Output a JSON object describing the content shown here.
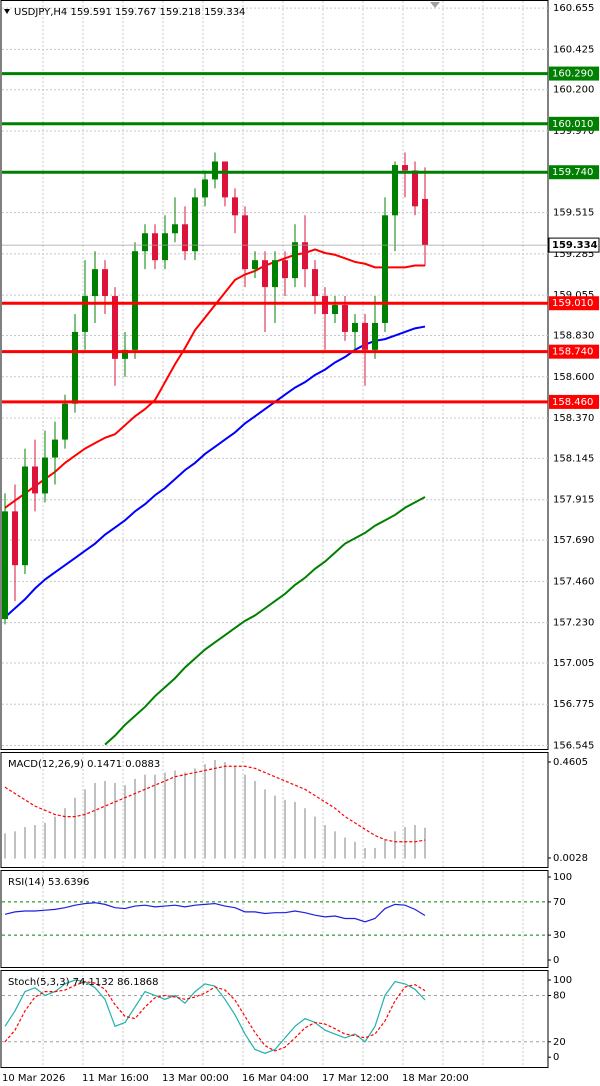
{
  "chart_data": [
    {
      "type": "candlestick",
      "title": "USDJPY,H4 159.591 159.767 159.218 159.334",
      "categories": [
        "10 Mar 2026",
        null,
        null,
        null,
        null,
        null,
        null,
        null,
        "11 Mar 16:00",
        null,
        null,
        null,
        null,
        null,
        null,
        null,
        "13 Mar 00:00",
        null,
        null,
        null,
        null,
        null,
        null,
        null,
        "16 Mar 04:00",
        null,
        null,
        null,
        null,
        null,
        null,
        null,
        "17 Mar 12:00",
        null,
        null,
        null,
        null,
        null,
        null,
        null,
        "18 Mar 20:00",
        null,
        null
      ],
      "open": [
        157.25,
        157.85,
        157.55,
        158.1,
        157.95,
        158.15,
        158.25,
        158.45,
        158.85,
        159.05,
        159.2,
        159.05,
        158.7,
        158.75,
        159.3,
        159.4,
        159.25,
        159.4,
        159.45,
        159.3,
        159.6,
        159.7,
        159.8,
        159.6,
        159.5,
        159.2,
        159.25,
        159.1,
        159.25,
        159.15,
        159.35,
        159.2,
        159.05,
        158.95,
        159.0,
        158.85,
        158.9,
        158.75,
        158.9,
        159.5,
        159.78,
        159.75,
        159.591
      ],
      "high": [
        157.95,
        158.0,
        158.2,
        158.25,
        158.3,
        158.35,
        158.5,
        158.95,
        159.25,
        159.3,
        159.25,
        159.1,
        158.85,
        159.35,
        159.45,
        159.45,
        159.5,
        159.6,
        159.55,
        159.65,
        159.75,
        159.85,
        159.8,
        159.65,
        159.55,
        159.3,
        159.3,
        159.3,
        159.3,
        159.45,
        159.5,
        159.25,
        159.1,
        159.05,
        159.05,
        158.95,
        158.95,
        159.05,
        159.6,
        159.8,
        159.85,
        159.8,
        159.767
      ],
      "low": [
        157.22,
        157.35,
        157.5,
        157.85,
        157.9,
        158.0,
        158.2,
        158.4,
        158.75,
        158.9,
        158.95,
        158.55,
        158.6,
        158.7,
        159.2,
        159.2,
        159.2,
        159.35,
        159.25,
        159.25,
        159.55,
        159.65,
        159.55,
        159.4,
        159.1,
        159.15,
        158.85,
        158.9,
        159.05,
        159.1,
        159.1,
        158.95,
        158.75,
        158.9,
        158.8,
        158.75,
        158.55,
        158.7,
        158.85,
        159.3,
        159.6,
        159.5,
        159.218
      ],
      "close": [
        157.85,
        157.55,
        158.1,
        157.95,
        158.15,
        158.25,
        158.45,
        158.85,
        159.05,
        159.2,
        159.05,
        158.7,
        158.75,
        159.3,
        159.4,
        159.25,
        159.4,
        159.45,
        159.3,
        159.6,
        159.7,
        159.8,
        159.6,
        159.5,
        159.2,
        159.25,
        159.1,
        159.25,
        159.15,
        159.35,
        159.2,
        159.05,
        158.95,
        159.0,
        158.85,
        158.9,
        158.75,
        158.9,
        159.5,
        159.78,
        159.75,
        159.55,
        159.334
      ],
      "up_color": "#008000",
      "down_color": "#dc143c",
      "series": [
        {
          "color": "#ff0000",
          "values": [
            157.87,
            157.91,
            157.95,
            157.99,
            158.03,
            158.07,
            158.12,
            158.16,
            158.2,
            158.23,
            158.26,
            158.28,
            158.33,
            158.38,
            158.42,
            158.47,
            158.57,
            158.67,
            158.76,
            158.86,
            158.93,
            159.0,
            159.07,
            159.14,
            159.17,
            159.19,
            159.22,
            159.24,
            159.26,
            159.28,
            159.29,
            159.31,
            159.29,
            159.28,
            159.26,
            159.24,
            159.23,
            159.21,
            159.21,
            159.21,
            159.21,
            159.22,
            159.22
          ]
        },
        {
          "color": "#0000ff",
          "values": [
            157.26,
            157.31,
            157.36,
            157.42,
            157.47,
            157.51,
            157.55,
            157.59,
            157.63,
            157.67,
            157.72,
            157.76,
            157.8,
            157.85,
            157.89,
            157.94,
            157.98,
            158.03,
            158.08,
            158.12,
            158.17,
            158.21,
            158.25,
            158.29,
            158.34,
            158.38,
            158.42,
            158.46,
            158.5,
            158.54,
            158.57,
            158.61,
            158.64,
            158.68,
            158.71,
            158.75,
            158.78,
            158.8,
            158.81,
            158.83,
            158.85,
            158.87,
            158.88
          ]
        },
        {
          "color": "#008000",
          "values": [
            null,
            null,
            null,
            null,
            null,
            null,
            null,
            null,
            null,
            null,
            156.55,
            156.6,
            156.66,
            156.71,
            156.76,
            156.82,
            156.87,
            156.92,
            156.98,
            157.03,
            157.08,
            157.12,
            157.16,
            157.2,
            157.24,
            157.27,
            157.31,
            157.35,
            157.39,
            157.44,
            157.48,
            157.53,
            157.57,
            157.62,
            157.67,
            157.7,
            157.73,
            157.77,
            157.8,
            157.83,
            157.87,
            157.9,
            157.93
          ]
        }
      ],
      "levels": [
        {
          "value": 160.29,
          "label": "160.290",
          "color": "#008000"
        },
        {
          "value": 160.01,
          "label": "160.010",
          "color": "#008000"
        },
        {
          "value": 159.74,
          "label": "159.740",
          "color": "#008000"
        },
        {
          "value": 159.01,
          "label": "159.010",
          "color": "#ff0000"
        },
        {
          "value": 158.74,
          "label": "158.740",
          "color": "#ff0000"
        },
        {
          "value": 158.46,
          "label": "158.460",
          "color": "#ff0000"
        }
      ],
      "last_price": 159.334,
      "ylim": [
        156.52,
        160.7
      ],
      "yticks": [
        160.655,
        160.425,
        {
          "value": 160.2,
          "label": "160.200"
        },
        {
          "value": 159.97,
          "label": "159.970"
        },
        159.515,
        159.285,
        159.055,
        {
          "value": 158.83,
          "label": "158.830"
        },
        {
          "value": 158.6,
          "label": "158.600"
        },
        {
          "value": 158.37,
          "label": "158.370"
        },
        158.145,
        157.915,
        {
          "value": 157.69,
          "label": "157.690"
        },
        {
          "value": 157.46,
          "label": "157.460"
        },
        {
          "value": 157.23,
          "label": "157.230"
        },
        157.005,
        156.775,
        156.545
      ],
      "grid": true
    },
    {
      "type": "macd",
      "title": "MACD(12,26,9) 0.1471 0.0883",
      "ylim": [
        -0.045,
        0.508
      ],
      "yticks": [
        0.4605,
        0.0028
      ],
      "series": [
        {
          "kind": "bar",
          "color": "#c0c0c0",
          "values": [
            0.12,
            0.13,
            0.15,
            0.16,
            0.17,
            0.2,
            0.24,
            0.29,
            0.33,
            0.36,
            0.37,
            0.36,
            0.35,
            0.38,
            0.4,
            0.4,
            0.41,
            0.42,
            0.41,
            0.43,
            0.45,
            0.47,
            0.46,
            0.44,
            0.4,
            0.37,
            0.33,
            0.3,
            0.28,
            0.27,
            0.24,
            0.2,
            0.16,
            0.13,
            0.1,
            0.08,
            0.05,
            0.05,
            0.09,
            0.13,
            0.15,
            0.16,
            0.1471
          ]
        },
        {
          "kind": "line",
          "dash": true,
          "color": "#ff0000",
          "values": [
            0.34,
            0.31,
            0.28,
            0.25,
            0.23,
            0.21,
            0.2,
            0.2,
            0.21,
            0.23,
            0.25,
            0.27,
            0.29,
            0.31,
            0.33,
            0.35,
            0.37,
            0.39,
            0.4,
            0.41,
            0.42,
            0.43,
            0.44,
            0.44,
            0.44,
            0.43,
            0.41,
            0.39,
            0.37,
            0.35,
            0.33,
            0.3,
            0.27,
            0.24,
            0.2,
            0.17,
            0.14,
            0.11,
            0.09,
            0.08,
            0.08,
            0.08,
            0.0883
          ]
        }
      ]
    },
    {
      "type": "line",
      "title": "RSI(14) 53.6396",
      "ylim": [
        -9.6,
        108.4
      ],
      "yticks": [
        100,
        70,
        30,
        0
      ],
      "levels": [
        70,
        30
      ],
      "level_color": "#008000",
      "series": [
        {
          "kind": "line",
          "color": "#1e1ee6",
          "values": [
            55,
            58,
            59,
            59,
            60,
            61,
            63,
            66,
            68,
            69,
            67,
            63,
            62,
            65,
            66,
            64,
            65,
            66,
            64,
            66,
            67,
            68,
            65,
            63,
            58,
            58,
            56,
            57,
            57,
            59,
            57,
            54,
            52,
            53,
            50,
            50,
            46,
            50,
            62,
            67,
            66,
            61,
            53.6396
          ]
        }
      ]
    },
    {
      "type": "line",
      "title": "Stoch(5,3,3) 74.1132 86.1868",
      "ylim": [
        -14,
        113
      ],
      "yticks": [
        100,
        80,
        20,
        0
      ],
      "levels": [
        80,
        20
      ],
      "level_color": "#a0a0a0",
      "series": [
        {
          "kind": "line",
          "color": "#20b2aa",
          "values": [
            40,
            60,
            85,
            90,
            80,
            85,
            95,
            100,
            98,
            90,
            75,
            40,
            45,
            65,
            85,
            80,
            75,
            80,
            70,
            85,
            95,
            92,
            75,
            55,
            30,
            10,
            5,
            10,
            25,
            40,
            50,
            45,
            35,
            30,
            25,
            30,
            20,
            40,
            80,
            98,
            95,
            88,
            74.1132
          ]
        },
        {
          "kind": "line",
          "dash": true,
          "color": "#ff0000",
          "values": [
            20,
            35,
            60,
            78,
            85,
            85,
            87,
            93,
            98,
            96,
            88,
            68,
            53,
            50,
            65,
            77,
            80,
            78,
            75,
            78,
            83,
            91,
            87,
            74,
            53,
            32,
            15,
            8,
            13,
            25,
            38,
            45,
            43,
            37,
            30,
            28,
            25,
            30,
            47,
            73,
            91,
            94,
            86.1868
          ]
        }
      ]
    }
  ]
}
